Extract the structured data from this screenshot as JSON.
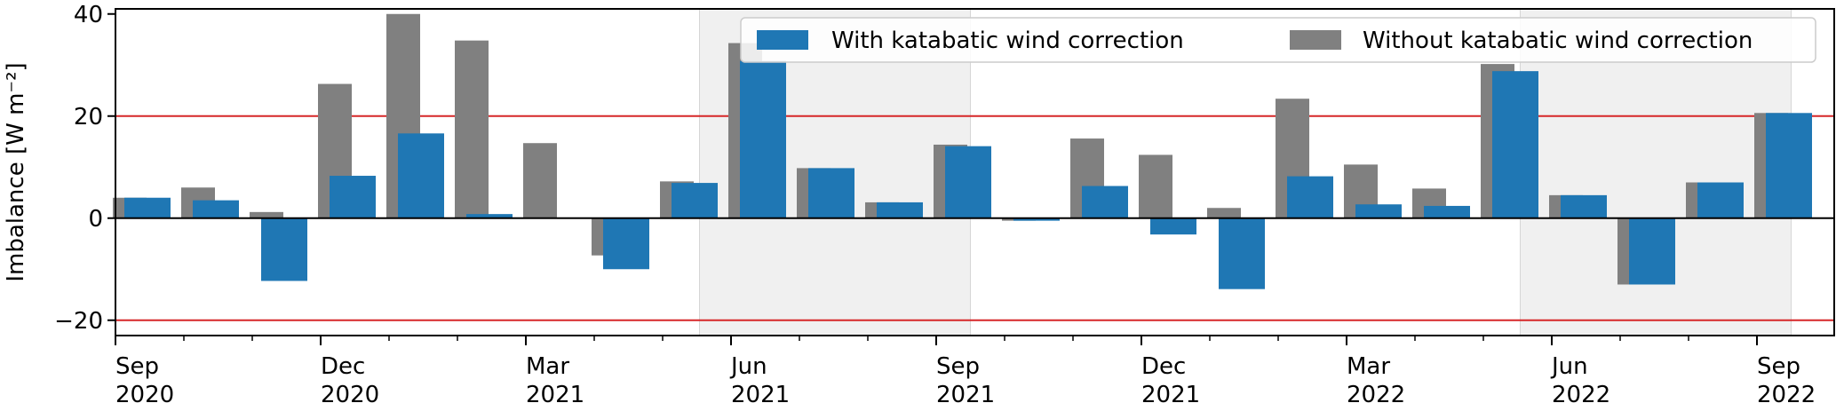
{
  "chart_data": {
    "type": "bar",
    "ylabel": "Imbalance [W m⁻²]",
    "ylim": [
      -23,
      41
    ],
    "yticks": [
      -20,
      0,
      20,
      40
    ],
    "x_axis": "month (Sep 2020 – Sep 2022)",
    "xtick_labels": [
      {
        "month": 0,
        "line1": "Sep",
        "line2": "2020"
      },
      {
        "month": 3,
        "line1": "Dec",
        "line2": "2020"
      },
      {
        "month": 6,
        "line1": "Mar",
        "line2": "2021"
      },
      {
        "month": 9,
        "line1": "Jun",
        "line2": "2021"
      },
      {
        "month": 12,
        "line1": "Sep",
        "line2": "2021"
      },
      {
        "month": 15,
        "line1": "Dec",
        "line2": "2021"
      },
      {
        "month": 18,
        "line1": "Mar",
        "line2": "2022"
      },
      {
        "month": 21,
        "line1": "Jun",
        "line2": "2022"
      },
      {
        "month": 24,
        "line1": "Sep",
        "line2": "2022"
      }
    ],
    "shaded_periods": [
      {
        "from": "Jun 2021",
        "to": "Sep 2021"
      },
      {
        "from": "Jun 2022",
        "to": "Sep 2022"
      }
    ],
    "reference_lines": [
      20,
      -20
    ],
    "months": [
      "Sep 2020",
      "Oct 2020",
      "Nov 2020",
      "Dec 2020",
      "Jan 2021",
      "Feb 2021",
      "Mar 2021",
      "Apr 2021",
      "May 2021",
      "Jun 2021",
      "Jul 2021",
      "Aug 2021",
      "Sep 2021",
      "Oct 2021",
      "Nov 2021",
      "Dec 2021",
      "Jan 2022",
      "Feb 2022",
      "Mar 2022",
      "Apr 2022",
      "May 2022",
      "Jun 2022",
      "Jul 2022",
      "Aug 2022",
      "Sep 2022"
    ],
    "series": [
      {
        "name": "With katabatic wind correction",
        "color": "#1f77b4",
        "values": [
          4.0,
          3.5,
          -12.3,
          8.3,
          16.6,
          0.8,
          0.0,
          -10.0,
          6.9,
          30.8,
          9.8,
          3.1,
          14.1,
          -0.5,
          6.3,
          -3.2,
          -13.9,
          8.2,
          2.7,
          2.4,
          28.8,
          4.5,
          -13.0,
          7.0,
          20.6
        ]
      },
      {
        "name": "Without katabatic wind correction",
        "color": "#808080",
        "values": [
          4.0,
          6.0,
          1.2,
          26.3,
          40.0,
          34.8,
          14.7,
          -7.3,
          7.2,
          34.3,
          9.8,
          3.1,
          14.4,
          -0.5,
          15.6,
          12.4,
          2.0,
          23.4,
          10.5,
          5.8,
          30.2,
          4.5,
          -13.0,
          7.0,
          20.6
        ]
      }
    ],
    "legend": {
      "location": "top-right"
    },
    "grid": false
  }
}
